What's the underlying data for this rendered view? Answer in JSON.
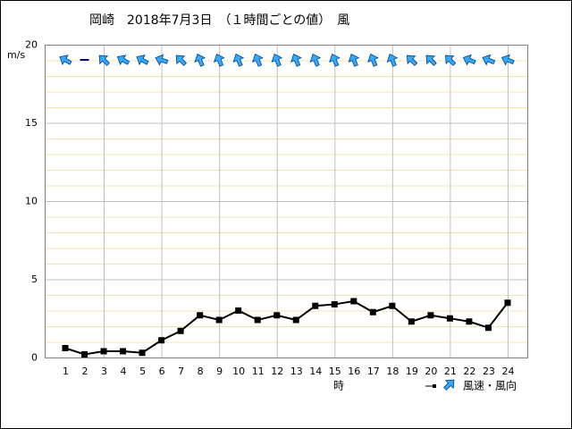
{
  "chart_data": {
    "type": "line",
    "title": "岡崎　2018年7月3日　（１時間ごとの値）　風",
    "y_label": "m/s",
    "x_label": "時",
    "categories": [
      "1",
      "2",
      "3",
      "4",
      "5",
      "6",
      "7",
      "8",
      "9",
      "10",
      "11",
      "12",
      "13",
      "14",
      "15",
      "16",
      "17",
      "18",
      "19",
      "20",
      "21",
      "22",
      "23",
      "24"
    ],
    "series": [
      {
        "name": "風速・風向",
        "color": "#000000",
        "values": [
          0.6,
          0.2,
          0.4,
          0.4,
          0.3,
          1.1,
          1.7,
          2.7,
          2.4,
          3.0,
          2.4,
          2.7,
          2.4,
          3.3,
          3.4,
          3.6,
          2.9,
          3.3,
          2.3,
          2.7,
          2.5,
          2.3,
          1.9,
          3.5
        ],
        "directions": [
          300,
          null,
          315,
          300,
          300,
          290,
          315,
          337.5,
          337.5,
          337.5,
          337.5,
          337.5,
          337.5,
          337.5,
          337.5,
          337.5,
          337.5,
          337.5,
          315,
          315,
          315,
          292.5,
          292.5,
          292.5
        ],
        "arrow_color": "#33aaff"
      }
    ],
    "ylim": [
      0,
      20
    ],
    "yticks": [
      0,
      5,
      10,
      15,
      20
    ],
    "y_minor_ticks": [
      1,
      2,
      3,
      4,
      6,
      7,
      8,
      9,
      11,
      12,
      13,
      14,
      16,
      17,
      18,
      19
    ],
    "x_grid_step": 3,
    "grid": true
  }
}
